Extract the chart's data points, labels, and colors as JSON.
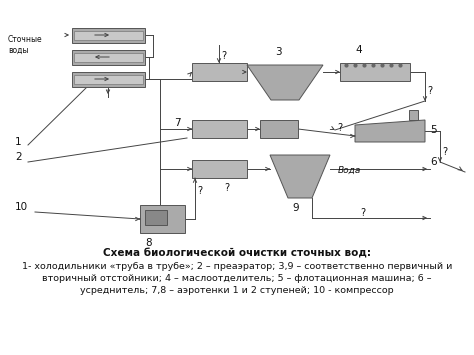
{
  "title": "Схема биологической очистки сточных вод:",
  "caption_line2": "1- холодильники «труба в трубе»; 2 – преаэратор; 3,9 – соответственно первичный и",
  "caption_line3": "вторичный отстойники; 4 – маслоотделитель; 5 – флотационная машина; 6 –",
  "caption_line4": "усреднитель; 7,8 – аэротенки 1 и 2 ступеней; 10 - компрессор",
  "bg_color": "#ffffff",
  "box_fill": "#aaaaaa",
  "box_fill_light": "#c0c0c0",
  "line_color": "#444444",
  "text_color": "#111111",
  "title_fontsize": 7.5,
  "caption_fontsize": 6.8,
  "label_fontsize": 7.5
}
